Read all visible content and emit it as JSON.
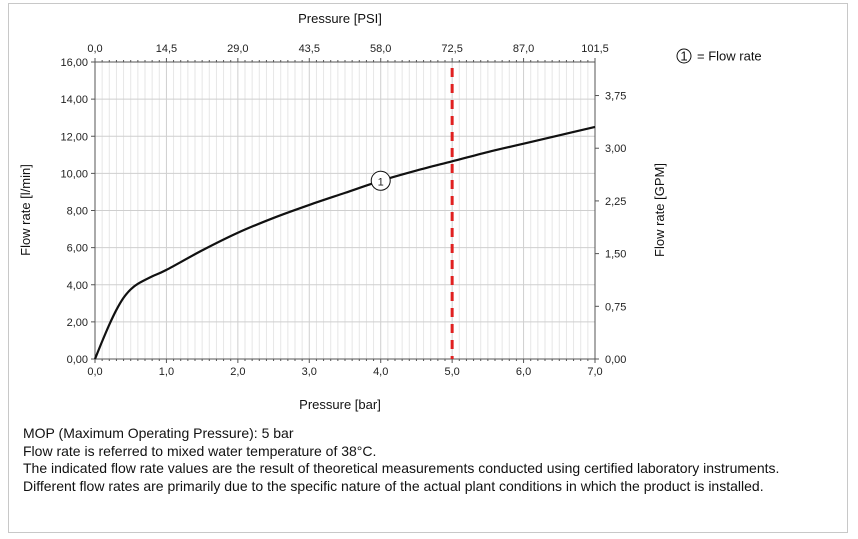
{
  "chart_data": {
    "type": "line",
    "x_axis_bottom": {
      "label": "Pressure [bar]",
      "range": [
        0,
        7
      ],
      "ticks": [
        "0,0",
        "1,0",
        "2,0",
        "3,0",
        "4,0",
        "5,0",
        "6,0",
        "7,0"
      ]
    },
    "x_axis_top": {
      "label": "Pressure [PSI]",
      "range": [
        0,
        101.5
      ],
      "ticks": [
        "0,0",
        "14,5",
        "29,0",
        "43,5",
        "58,0",
        "72,5",
        "87,0",
        "101,5"
      ]
    },
    "y_axis_left": {
      "label": "Flow rate [l/min]",
      "range": [
        0,
        16
      ],
      "ticks": [
        "0,00",
        "2,00",
        "4,00",
        "6,00",
        "8,00",
        "10,00",
        "12,00",
        "14,00",
        "16,00"
      ]
    },
    "y_axis_right": {
      "label": "Flow rate [GPM]",
      "range": [
        0,
        4.227
      ],
      "ticks": [
        "0,00",
        "0,75",
        "1,50",
        "2,25",
        "3,00",
        "3,75"
      ]
    },
    "grid": true,
    "series": [
      {
        "name": "Flow rate",
        "marker_label": "1",
        "color": "#111111",
        "x": [
          0,
          0.1,
          0.2,
          0.3,
          0.4,
          0.5,
          0.6,
          0.8,
          1.0,
          1.5,
          2.0,
          2.5,
          3.0,
          3.5,
          4.0,
          4.5,
          5.0,
          5.5,
          6.0,
          6.5,
          7.0
        ],
        "y": [
          0,
          0.95,
          1.85,
          2.65,
          3.3,
          3.75,
          4.05,
          4.45,
          4.8,
          5.85,
          6.8,
          7.6,
          8.3,
          8.95,
          9.6,
          10.15,
          10.65,
          11.15,
          11.6,
          12.05,
          12.5
        ]
      }
    ],
    "reference_line": {
      "x": 5.0,
      "color": "#e02020",
      "style": "dashed"
    },
    "series_marker_at_x": 4.0,
    "legend": {
      "symbol": "1",
      "text": "= Flow rate",
      "placement": "top-right"
    }
  },
  "notes": [
    "MOP (Maximum Operating Pressure): 5 bar",
    "Flow rate is referred to mixed water temperature of 38°C.",
    "The indicated flow rate values are the result of theoretical measurements conducted using certified laboratory instruments.",
    "Different flow rates are primarily due to the specific nature of the actual plant conditions in which the product is installed."
  ]
}
